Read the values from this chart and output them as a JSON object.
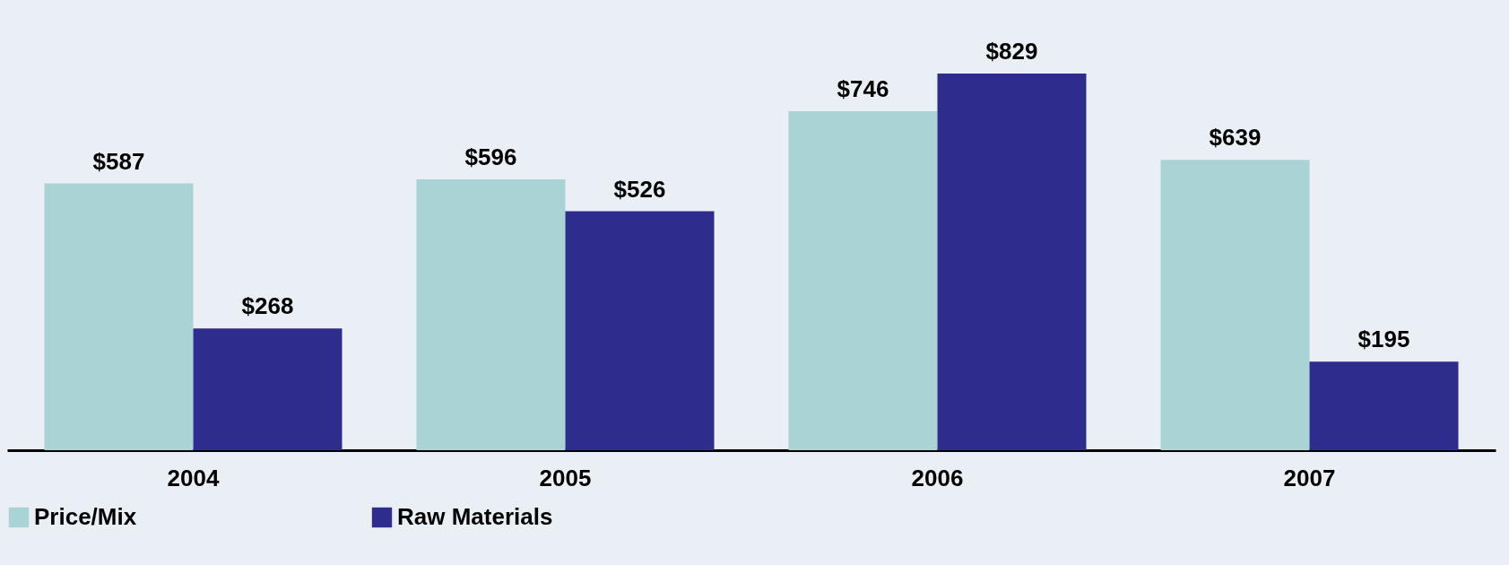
{
  "chart_data": {
    "type": "bar",
    "categories": [
      "2004",
      "2005",
      "2006",
      "2007"
    ],
    "series": [
      {
        "name": "Price/Mix",
        "color": "#a9d3d4",
        "values": [
          587,
          596,
          746,
          639
        ],
        "value_labels": [
          "$587",
          "$596",
          "$746",
          "$639"
        ]
      },
      {
        "name": "Raw Materials",
        "color": "#2e2d8e",
        "values": [
          268,
          526,
          829,
          195
        ],
        "value_labels": [
          "$268",
          "$526",
          "$829",
          "$195"
        ]
      }
    ],
    "legend": "bottom"
  }
}
